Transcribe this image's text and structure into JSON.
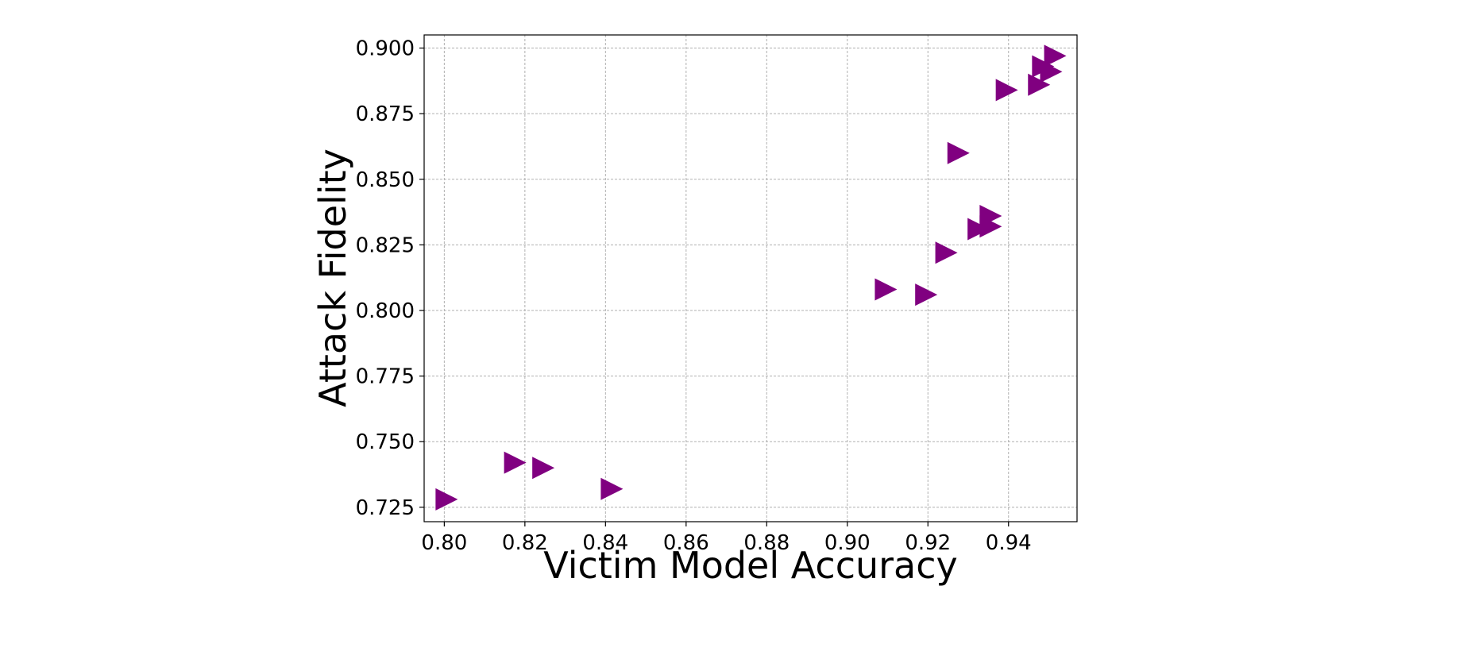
{
  "chart_data": {
    "type": "scatter",
    "title": "",
    "xlabel": "Victim Model Accuracy",
    "ylabel": "Attack Fidelity",
    "xlim": [
      0.795,
      0.957
    ],
    "ylim": [
      0.7195,
      0.905
    ],
    "xticks": [
      "0.80",
      "0.82",
      "0.84",
      "0.86",
      "0.88",
      "0.90",
      "0.92",
      "0.94"
    ],
    "xtick_values": [
      0.8,
      0.82,
      0.84,
      0.86,
      0.88,
      0.9,
      0.92,
      0.94
    ],
    "yticks": [
      "0.725",
      "0.750",
      "0.775",
      "0.800",
      "0.825",
      "0.850",
      "0.875",
      "0.900"
    ],
    "ytick_values": [
      0.725,
      0.75,
      0.775,
      0.8,
      0.825,
      0.85,
      0.875,
      0.9
    ],
    "grid": true,
    "marker": "triangle-right",
    "color": "#800080",
    "series": [
      {
        "points": [
          {
            "x": 0.8,
            "y": 0.728
          },
          {
            "x": 0.817,
            "y": 0.742
          },
          {
            "x": 0.824,
            "y": 0.74
          },
          {
            "x": 0.841,
            "y": 0.732
          },
          {
            "x": 0.909,
            "y": 0.808
          },
          {
            "x": 0.919,
            "y": 0.806
          },
          {
            "x": 0.924,
            "y": 0.822
          },
          {
            "x": 0.927,
            "y": 0.86
          },
          {
            "x": 0.932,
            "y": 0.831
          },
          {
            "x": 0.935,
            "y": 0.832
          },
          {
            "x": 0.935,
            "y": 0.836
          },
          {
            "x": 0.939,
            "y": 0.884
          },
          {
            "x": 0.947,
            "y": 0.886
          },
          {
            "x": 0.948,
            "y": 0.893
          },
          {
            "x": 0.95,
            "y": 0.891
          },
          {
            "x": 0.951,
            "y": 0.897
          }
        ]
      }
    ]
  }
}
